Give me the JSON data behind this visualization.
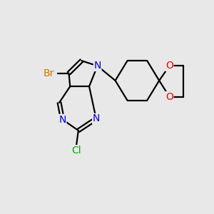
{
  "bg_color": "#e8e8e8",
  "bond_color": "#000000",
  "bond_width": 1.6,
  "atom_colors": {
    "Br": "#cc7700",
    "N": "#0000dd",
    "Cl": "#00aa00",
    "O": "#ee0000"
  },
  "font_size": 10.0,
  "xlim": [
    -0.5,
    10.5
  ],
  "ylim": [
    -0.5,
    8.5
  ]
}
